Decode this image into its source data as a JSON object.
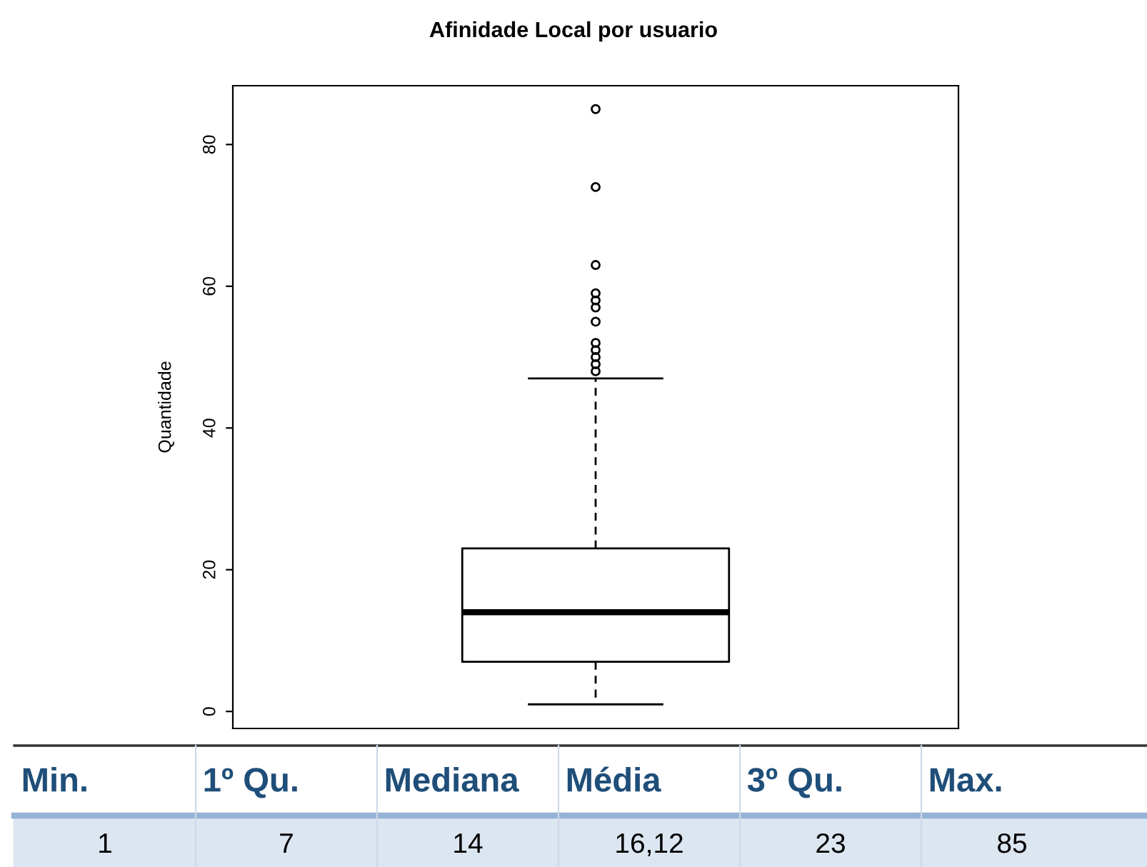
{
  "chart_data": {
    "type": "box",
    "title": "Afinidade Local por usuario",
    "ylabel": "Quantidade",
    "categories": [
      null
    ],
    "boxes": [
      {
        "low": 1,
        "q1": 7,
        "median": 14,
        "q3": 23,
        "high": 47,
        "outliers": [
          85,
          74,
          63,
          59,
          58,
          57,
          55,
          52,
          51,
          50,
          49,
          48
        ]
      }
    ],
    "ylim": [
      -2.4,
      88.3
    ],
    "yticks": [
      0,
      20,
      40,
      60,
      80
    ],
    "grid": false,
    "legend": false,
    "annotations": [
      "Min.",
      "1º Qu.",
      "Mediana",
      "Média",
      "3º Qu.",
      "Max.",
      "1",
      "7",
      "14",
      "16,12",
      "23",
      "85"
    ]
  }
}
